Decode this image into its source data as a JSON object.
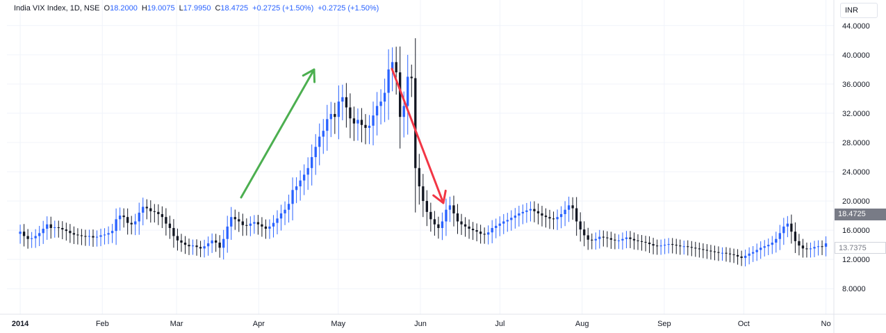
{
  "legend": {
    "symbol": "India VIX Index, 1D, NSE",
    "open_label": "O",
    "open": "18.2000",
    "high_label": "H",
    "high": "19.0075",
    "low_label": "L",
    "low": "17.9950",
    "close_label": "C",
    "close": "18.4725",
    "change": "+0.2725 (+1.50%)",
    "change_repeat": "+0.2725 (+1.50%)"
  },
  "currency": "INR",
  "last_price_tag": "18.4725",
  "prev_price_tag": "13.7375",
  "colors": {
    "up": "#2962ff",
    "down": "#131722",
    "arrow_up": "#4caf50",
    "arrow_down": "#f23645",
    "grid": "#f0f3fa"
  },
  "chart_data": {
    "type": "candlestick",
    "title": "",
    "y_axis_labels": [
      "8.0000",
      "12.0000",
      "16.0000",
      "20.0000",
      "24.0000",
      "28.0000",
      "32.0000",
      "36.0000",
      "40.0000",
      "44.0000"
    ],
    "y_ticks": [
      8,
      12,
      16,
      20,
      24,
      28,
      32,
      36,
      40,
      44
    ],
    "ylim": [
      4.5,
      47.5
    ],
    "x_axis_labels": [
      "2014",
      "Feb",
      "Mar",
      "Apr",
      "May",
      "Jun",
      "Jul",
      "Aug",
      "Sep",
      "Oct",
      "No"
    ],
    "x_tick_days": [
      0,
      31,
      59,
      90,
      120,
      151,
      181,
      212,
      243,
      273,
      304
    ],
    "x_days_range": [
      -5,
      307
    ],
    "closes": [
      15.8,
      15.2,
      14.8,
      14.9,
      15.2,
      15.6,
      16.2,
      16.8,
      16.3,
      16.4,
      16.3,
      16.1,
      15.9,
      15.6,
      15.4,
      15.3,
      15.2,
      15.1,
      15.2,
      15.0,
      15.1,
      15.3,
      15.4,
      15.6,
      15.9,
      17.5,
      18.0,
      17.8,
      17.0,
      16.8,
      17.2,
      18.4,
      19.2,
      19.0,
      18.6,
      18.5,
      18.2,
      17.8,
      16.9,
      16.3,
      15.2,
      14.6,
      14.3,
      14.0,
      13.8,
      13.9,
      13.7,
      13.5,
      13.8,
      14.2,
      14.6,
      14.3,
      13.6,
      14.8,
      16.5,
      17.8,
      17.5,
      17.2,
      16.7,
      16.6,
      16.9,
      17.1,
      16.8,
      16.5,
      16.2,
      16.5,
      17.0,
      17.6,
      18.3,
      18.8,
      19.6,
      21.5,
      22.0,
      22.8,
      23.6,
      24.5,
      26.0,
      27.4,
      28.8,
      29.6,
      31.2,
      31.9,
      31.5,
      33.6,
      34.2,
      32.8,
      31.3,
      30.6,
      31.1,
      30.4,
      30.0,
      30.3,
      31.7,
      33.0,
      33.6,
      34.8,
      38.0,
      39.0,
      37.6,
      31.5,
      33.0,
      37.0,
      36.8,
      24.5,
      22.0,
      20.0,
      18.5,
      17.5,
      16.8,
      16.3,
      17.2,
      18.8,
      19.4,
      18.3,
      17.2,
      16.8,
      16.5,
      16.2,
      16.0,
      15.8,
      15.5,
      15.4,
      15.7,
      16.3,
      16.6,
      16.9,
      17.2,
      17.4,
      17.7,
      18.0,
      18.3,
      18.5,
      18.7,
      18.9,
      18.6,
      18.3,
      18.0,
      17.8,
      17.6,
      17.5,
      17.8,
      18.2,
      18.8,
      19.4,
      19.0,
      17.2,
      16.1,
      15.3,
      14.7,
      14.6,
      14.8,
      15.1,
      15.0,
      14.9,
      14.7,
      14.6,
      14.6,
      14.8,
      15.0,
      14.8,
      14.6,
      14.5,
      14.4,
      14.3,
      14.1,
      13.9,
      13.8,
      13.9,
      14.0,
      14.1,
      14.0,
      13.9,
      13.8,
      13.8,
      13.7,
      13.6,
      13.5,
      13.4,
      13.3,
      13.2,
      13.1,
      13.0,
      12.9,
      12.9,
      12.8,
      12.7,
      12.6,
      12.4,
      12.2,
      12.5,
      12.8,
      13.0,
      13.3,
      13.6,
      13.8,
      14.0,
      14.3,
      14.8,
      15.6,
      16.5,
      16.9,
      15.8,
      14.5,
      13.9,
      13.5,
      13.4,
      13.5,
      13.7,
      13.8,
      13.7375,
      14.2
    ]
  }
}
